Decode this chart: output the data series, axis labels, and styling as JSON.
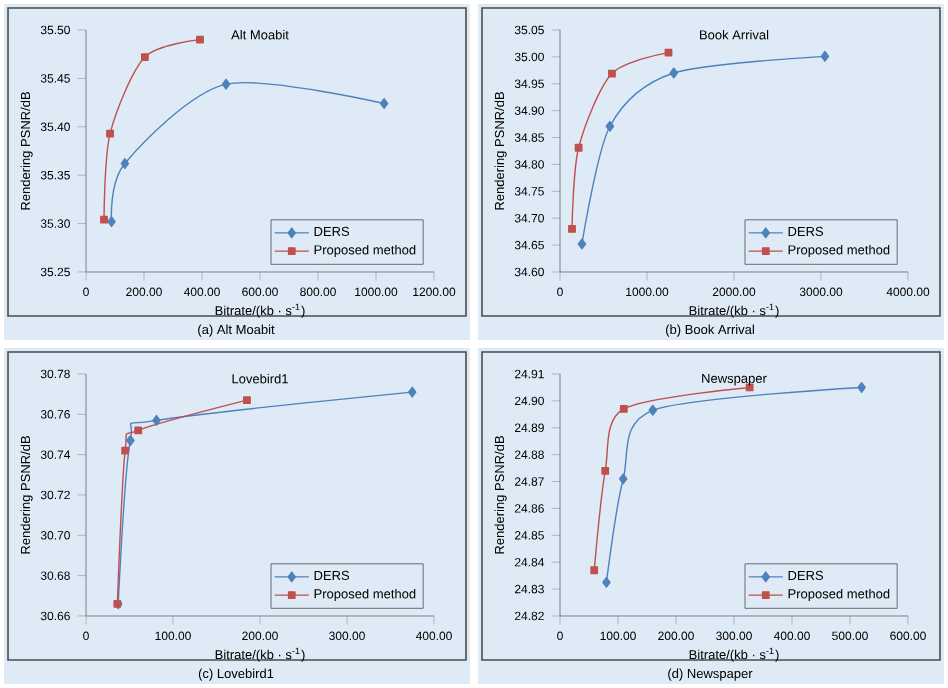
{
  "chart_data": [
    {
      "type": "line",
      "title": "Alt Moabit",
      "xlabel": "Bitrate/(kb · s$^{-1}$)",
      "ylabel": "Rendering PSNR/dB",
      "legend": "bottom right",
      "annotations": [
        "(a) Alt Moabit"
      ],
      "xlim": [
        0,
        1200
      ],
      "xticks": [
        {
          "value": 0,
          "label": "0"
        },
        {
          "value": 200,
          "label": "200.00"
        },
        {
          "value": 400,
          "label": "400.00"
        },
        {
          "value": 600,
          "label": "600.00"
        },
        {
          "value": 800,
          "label": "800.00"
        },
        {
          "value": 1000,
          "label": "1000.00"
        },
        {
          "value": 1200,
          "label": "1200.00"
        }
      ],
      "ylim": [
        35.25,
        35.5
      ],
      "yticks": [
        {
          "value": 35.25,
          "label": "35.25"
        },
        {
          "value": 35.3,
          "label": "35.30"
        },
        {
          "value": 35.35,
          "label": "35.35"
        },
        {
          "value": 35.4,
          "label": "35.40"
        },
        {
          "value": 35.45,
          "label": "35.45"
        },
        {
          "value": 35.5,
          "label": "35.50"
        }
      ],
      "series": [
        {
          "name": "DERS",
          "color": "#4f81bd",
          "marker": "diamond",
          "x": [
            88,
            134,
            483,
            1028
          ],
          "values": [
            35.302,
            35.362,
            35.444,
            35.424
          ]
        },
        {
          "name": "Proposed method",
          "color": "#c0504d",
          "marker": "square",
          "x": [
            62,
            83,
            203,
            393
          ],
          "values": [
            35.304,
            35.393,
            35.472,
            35.49
          ]
        }
      ]
    },
    {
      "type": "line",
      "title": "Book Arrival",
      "xlabel": "Bitrate/(kb · s$^{-1}$)",
      "ylabel": "Rendering PSNR/dB",
      "legend": "bottom right",
      "annotations": [
        "(b) Book Arrival"
      ],
      "xlim": [
        0,
        4000
      ],
      "xticks": [
        {
          "value": 0,
          "label": "0"
        },
        {
          "value": 1000,
          "label": "1000.00"
        },
        {
          "value": 2000,
          "label": "2000.00"
        },
        {
          "value": 3000,
          "label": "3000.00"
        },
        {
          "value": 4000,
          "label": "4000.00"
        }
      ],
      "ylim": [
        34.6,
        35.05
      ],
      "yticks": [
        {
          "value": 34.6,
          "label": "34.60"
        },
        {
          "value": 34.65,
          "label": "34.65"
        },
        {
          "value": 34.7,
          "label": "34.70"
        },
        {
          "value": 34.75,
          "label": "34.75"
        },
        {
          "value": 34.8,
          "label": "34.80"
        },
        {
          "value": 34.85,
          "label": "34.85"
        },
        {
          "value": 34.9,
          "label": "34.90"
        },
        {
          "value": 34.95,
          "label": "34.95"
        },
        {
          "value": 35.0,
          "label": "35.00"
        },
        {
          "value": 35.05,
          "label": "35.05"
        }
      ],
      "series": [
        {
          "name": "DERS",
          "color": "#4f81bd",
          "marker": "diamond",
          "x": [
            252,
            574,
            1308,
            3045
          ],
          "values": [
            34.652,
            34.871,
            34.97,
            35.001
          ]
        },
        {
          "name": "Proposed method",
          "color": "#c0504d",
          "marker": "square",
          "x": [
            138,
            214,
            597,
            1247
          ],
          "values": [
            34.68,
            34.831,
            34.969,
            35.008
          ]
        }
      ]
    },
    {
      "type": "line",
      "title": "Lovebird1",
      "xlabel": "Bitrate/(kb · s$^{-1}$)",
      "ylabel": "Rendering PSNR/dB",
      "legend": "bottom right",
      "annotations": [
        "(c) Lovebird1"
      ],
      "xlim": [
        0,
        400
      ],
      "xticks": [
        {
          "value": 0,
          "label": "0"
        },
        {
          "value": 100,
          "label": "100.00"
        },
        {
          "value": 200,
          "label": "200.00"
        },
        {
          "value": 300,
          "label": "300.00"
        },
        {
          "value": 400,
          "label": "400.00"
        }
      ],
      "ylim": [
        30.66,
        30.78
      ],
      "yticks": [
        {
          "value": 30.66,
          "label": "30.66"
        },
        {
          "value": 30.68,
          "label": "30.68"
        },
        {
          "value": 30.7,
          "label": "30.70"
        },
        {
          "value": 30.72,
          "label": "30.72"
        },
        {
          "value": 30.74,
          "label": "30.74"
        },
        {
          "value": 30.76,
          "label": "30.76"
        },
        {
          "value": 30.78,
          "label": "30.78"
        }
      ],
      "series": [
        {
          "name": "DERS",
          "color": "#4f81bd",
          "marker": "diamond",
          "x": [
            37,
            51,
            81,
            375
          ],
          "values": [
            30.666,
            30.747,
            30.757,
            30.771
          ]
        },
        {
          "name": "Proposed method",
          "color": "#c0504d",
          "marker": "square",
          "x": [
            36,
            45,
            60,
            185
          ],
          "values": [
            30.666,
            30.742,
            30.752,
            30.767
          ]
        }
      ]
    },
    {
      "type": "line",
      "title": "Newspaper",
      "xlabel": "Bitrate/(kb · s$^{-1}$)",
      "ylabel": "Rendering PSNR/dB",
      "legend": "bottom right",
      "annotations": [
        "(d) Newspaper"
      ],
      "xlim": [
        0,
        600
      ],
      "xticks": [
        {
          "value": 0,
          "label": "0"
        },
        {
          "value": 100,
          "label": "100.00"
        },
        {
          "value": 200,
          "label": "200.00"
        },
        {
          "value": 300,
          "label": "300.00"
        },
        {
          "value": 400,
          "label": "400.00"
        },
        {
          "value": 500,
          "label": "500.00"
        },
        {
          "value": 600,
          "label": "600.00"
        }
      ],
      "ylim": [
        24.82,
        24.91
      ],
      "yticks": [
        {
          "value": 24.82,
          "label": "24.82"
        },
        {
          "value": 24.83,
          "label": "24.83"
        },
        {
          "value": 24.84,
          "label": "24.84"
        },
        {
          "value": 24.85,
          "label": "24.85"
        },
        {
          "value": 24.86,
          "label": "24.86"
        },
        {
          "value": 24.87,
          "label": "24.87"
        },
        {
          "value": 24.88,
          "label": "24.88"
        },
        {
          "value": 24.89,
          "label": "24.89"
        },
        {
          "value": 24.9,
          "label": "24.90"
        },
        {
          "value": 24.91,
          "label": "24.91"
        }
      ],
      "series": [
        {
          "name": "DERS",
          "color": "#4f81bd",
          "marker": "diamond",
          "x": [
            80,
            109,
            160,
            520
          ],
          "values": [
            24.8325,
            24.871,
            24.8965,
            24.905
          ]
        },
        {
          "name": "Proposed method",
          "color": "#c0504d",
          "marker": "square",
          "x": [
            59,
            78,
            110,
            327
          ],
          "values": [
            24.837,
            24.874,
            24.897,
            24.905
          ]
        }
      ]
    }
  ]
}
